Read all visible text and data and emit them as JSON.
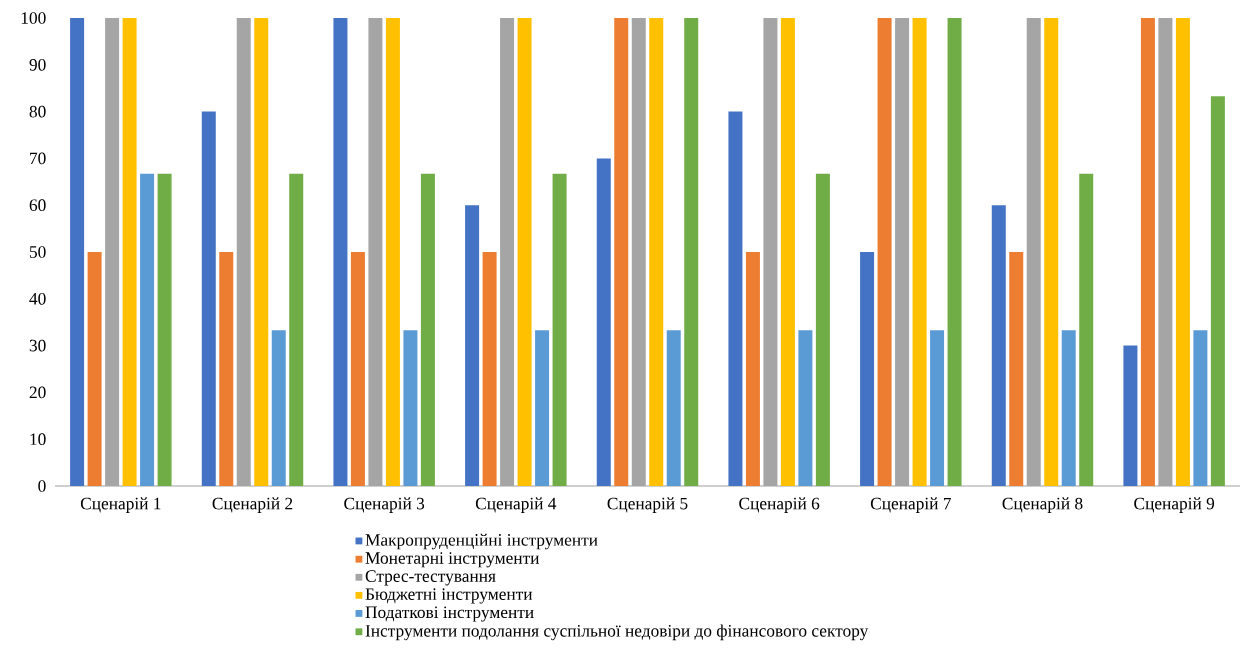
{
  "chart_data": {
    "type": "bar",
    "categories": [
      "Сценарій 1",
      "Сценарій 2",
      "Сценарій 3",
      "Сценарій 4",
      "Сценарій 5",
      "Сценарій 6",
      "Сценарій 7",
      "Сценарій 8",
      "Сценарій 9"
    ],
    "series": [
      {
        "name": "Макропруденційні інструменти",
        "color": "#4472c4",
        "values": [
          100,
          80,
          100,
          60,
          70,
          80,
          50,
          60,
          30
        ]
      },
      {
        "name": "Монетарні інструменти",
        "color": "#ed7d31",
        "values": [
          50,
          50,
          50,
          50,
          100,
          50,
          100,
          50,
          100
        ]
      },
      {
        "name": "Стрес-тестування",
        "color": "#a5a5a5",
        "values": [
          100,
          100,
          100,
          100,
          100,
          100,
          100,
          100,
          100
        ]
      },
      {
        "name": "Бюджетні інструменти",
        "color": "#ffc000",
        "values": [
          100,
          100,
          100,
          100,
          100,
          100,
          100,
          100,
          100
        ]
      },
      {
        "name": "Податкові інструменти",
        "color": "#5b9bd5",
        "values": [
          66.7,
          33.3,
          33.3,
          33.3,
          33.3,
          33.3,
          33.3,
          33.3,
          33.3
        ]
      },
      {
        "name": "Інструменти подолання суспільної недовіри до фінансового сектору",
        "color": "#70ad47",
        "values": [
          66.7,
          66.7,
          66.7,
          66.7,
          100,
          66.7,
          100,
          66.7,
          83.3
        ]
      }
    ],
    "ylim": [
      0,
      100
    ],
    "yticks": [
      0,
      10,
      20,
      30,
      40,
      50,
      60,
      70,
      80,
      90,
      100
    ],
    "grid": false,
    "legend": "bottom"
  }
}
